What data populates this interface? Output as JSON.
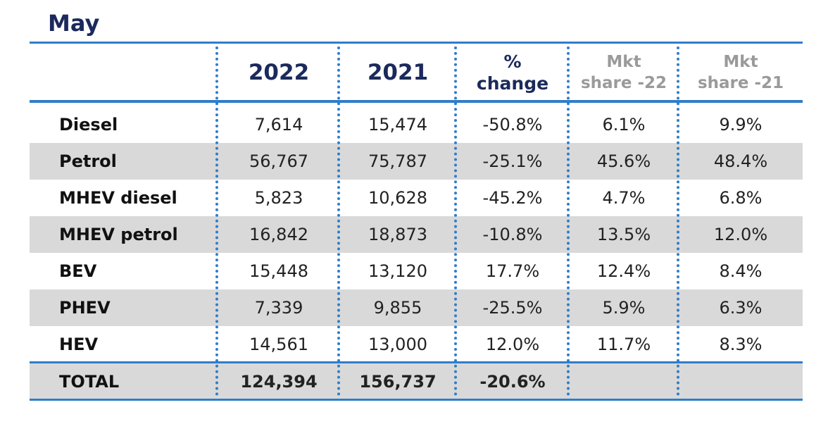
{
  "title": "May",
  "accent_color": "#2f7dc9",
  "title_color": "#1b2a5c",
  "shade_color": "#d9d9d9",
  "chart_data": {
    "type": "table",
    "title": "May",
    "columns": [
      {
        "key": "label",
        "label": ""
      },
      {
        "key": "y2022",
        "label": "2022"
      },
      {
        "key": "y2021",
        "label": "2021"
      },
      {
        "key": "change",
        "label_line1": "%",
        "label_line2": "change"
      },
      {
        "key": "share22",
        "label_line1": "Mkt",
        "label_line2": "share -22"
      },
      {
        "key": "share21",
        "label_line1": "Mkt",
        "label_line2": "share -21"
      }
    ],
    "rows": [
      {
        "label": "Diesel",
        "y2022": "7,614",
        "y2021": "15,474",
        "change": "-50.8%",
        "share22": "6.1%",
        "share21": "9.9%"
      },
      {
        "label": "Petrol",
        "y2022": "56,767",
        "y2021": "75,787",
        "change": "-25.1%",
        "share22": "45.6%",
        "share21": "48.4%"
      },
      {
        "label": "MHEV diesel",
        "y2022": "5,823",
        "y2021": "10,628",
        "change": "-45.2%",
        "share22": "4.7%",
        "share21": "6.8%"
      },
      {
        "label": "MHEV petrol",
        "y2022": "16,842",
        "y2021": "18,873",
        "change": "-10.8%",
        "share22": "13.5%",
        "share21": "12.0%"
      },
      {
        "label": "BEV",
        "y2022": "15,448",
        "y2021": "13,120",
        "change": "17.7%",
        "share22": "12.4%",
        "share21": "8.4%"
      },
      {
        "label": "PHEV",
        "y2022": "7,339",
        "y2021": "9,855",
        "change": "-25.5%",
        "share22": "5.9%",
        "share21": "6.3%"
      },
      {
        "label": "HEV",
        "y2022": "14,561",
        "y2021": "13,000",
        "change": "12.0%",
        "share22": "11.7%",
        "share21": "8.3%"
      }
    ],
    "total": {
      "label": "TOTAL",
      "y2022": "124,394",
      "y2021": "156,737",
      "change": "-20.6%",
      "share22": "",
      "share21": ""
    }
  }
}
